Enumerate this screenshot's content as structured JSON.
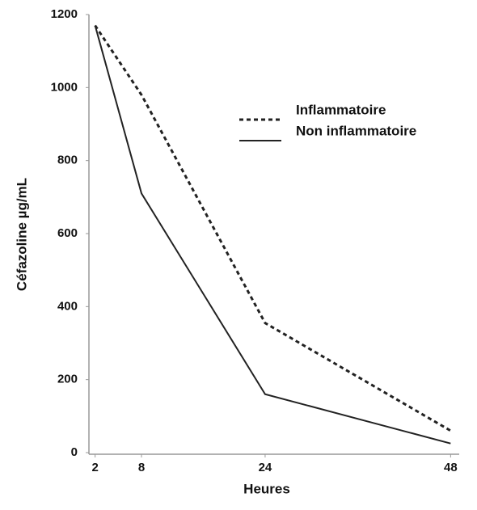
{
  "chart_data": {
    "type": "line",
    "x_label": "Heures",
    "y_label": "Céfazoline µg/mL",
    "x": [
      2,
      8,
      24,
      48
    ],
    "series": [
      {
        "name": "Inflammatoire",
        "color": "#222222",
        "dash": true,
        "values": [
          1170,
          980,
          355,
          60
        ]
      },
      {
        "name": "Non inflammatoire",
        "color": "#222222",
        "dash": false,
        "values": [
          1170,
          710,
          160,
          25
        ]
      }
    ],
    "xlim": [
      1.2,
      48.8
    ],
    "ylim": [
      0,
      1200
    ],
    "xticks": [
      2,
      8,
      24,
      48
    ],
    "yticks": [
      0,
      200,
      400,
      600,
      800,
      1000,
      1200
    ],
    "grid": false,
    "legend": "upper right"
  }
}
